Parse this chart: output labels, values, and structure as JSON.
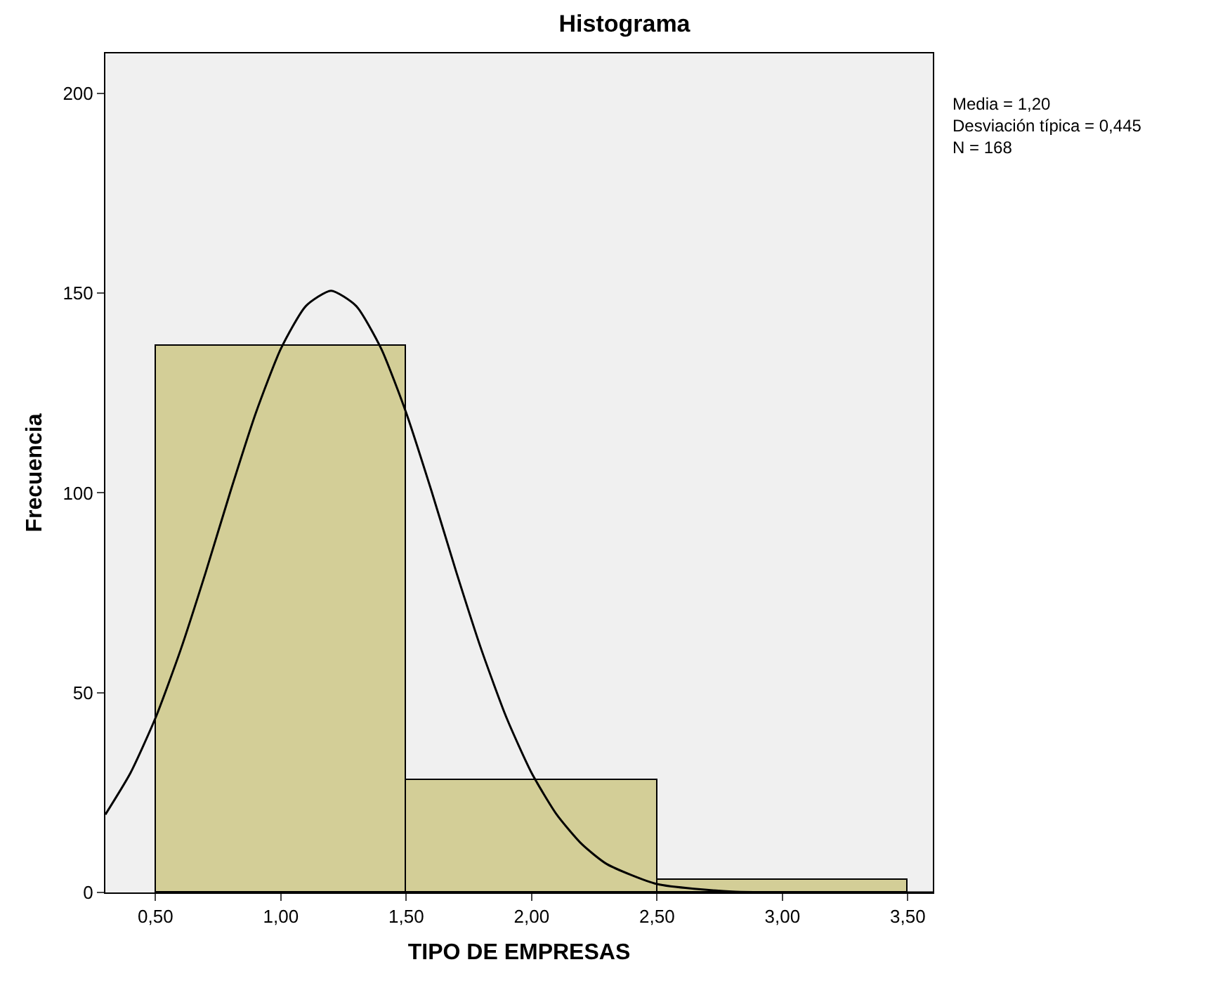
{
  "chart_data": {
    "type": "histogram",
    "title": "Histograma",
    "xlabel": "TIPO DE EMPRESAS",
    "ylabel": "Frecuencia",
    "bins": [
      0.5,
      1.5,
      2.5,
      3.5
    ],
    "values": [
      137,
      28,
      3
    ],
    "color": "#d3ce97",
    "series": [
      {
        "type": "line",
        "color": "#000000",
        "x": [
          0.3,
          0.4,
          0.5,
          0.6,
          0.7,
          0.8,
          0.9,
          1.0,
          1.1,
          1.2,
          1.3,
          1.4,
          1.5,
          1.6,
          1.7,
          1.8,
          1.9,
          2.0,
          2.1,
          2.2,
          2.3,
          2.5,
          2.8,
          3.1,
          3.6
        ],
        "values": [
          19.5,
          29.9,
          43.7,
          60.7,
          80.1,
          100.6,
          120,
          136.1,
          146.8,
          150.6,
          146.8,
          136.1,
          120,
          100.6,
          80.1,
          60.7,
          43.7,
          29.9,
          19.5,
          12.1,
          7.1,
          2.1,
          0.2,
          0,
          0
        ]
      }
    ],
    "xlim": [
      0.3,
      3.6
    ],
    "xticks": [
      {
        "value": 0.5,
        "label": "0,50"
      },
      {
        "value": 1,
        "label": "1,00"
      },
      {
        "value": 1.5,
        "label": "1,50"
      },
      {
        "value": 2,
        "label": "2,00"
      },
      {
        "value": 2.5,
        "label": "2,50"
      },
      {
        "value": 3,
        "label": "3,00"
      },
      {
        "value": 3.5,
        "label": "3,50"
      }
    ],
    "ylim": [
      0,
      210
    ],
    "yticks": [
      0,
      50,
      100,
      150,
      200
    ],
    "annotations": [
      "Media = 1,20",
      "Desviación típica = 0,445",
      "N = 168"
    ],
    "grid": false,
    "marker": "none",
    "line_style": "solid"
  }
}
